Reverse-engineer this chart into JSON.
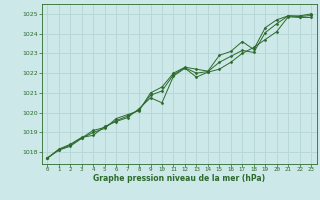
{
  "title": "Graphe pression niveau de la mer (hPa)",
  "bg_color": "#cce8e8",
  "line_color": "#2d6a2d",
  "grid_color": "#b8d8d8",
  "text_color": "#2d6a2d",
  "xlim": [
    -0.5,
    23.5
  ],
  "ylim": [
    1017.4,
    1025.5
  ],
  "yticks": [
    1018,
    1019,
    1020,
    1021,
    1022,
    1023,
    1024,
    1025
  ],
  "xticks": [
    0,
    1,
    2,
    3,
    4,
    5,
    6,
    7,
    8,
    9,
    10,
    11,
    12,
    13,
    14,
    15,
    16,
    17,
    18,
    19,
    20,
    21,
    22,
    23
  ],
  "series1_x": [
    0,
    1,
    2,
    3,
    4,
    5,
    6,
    7,
    8,
    9,
    10,
    11,
    12,
    13,
    14,
    15,
    16,
    17,
    18,
    19,
    20,
    21,
    22,
    23
  ],
  "series1_y": [
    1017.7,
    1018.1,
    1018.3,
    1018.7,
    1019.0,
    1019.2,
    1019.7,
    1019.9,
    1020.1,
    1021.0,
    1021.3,
    1022.0,
    1022.3,
    1022.2,
    1022.1,
    1022.9,
    1023.1,
    1023.6,
    1023.2,
    1024.3,
    1024.7,
    1024.9,
    1024.9,
    1025.0
  ],
  "series2_x": [
    0,
    1,
    2,
    3,
    4,
    5,
    6,
    7,
    8,
    9,
    10,
    11,
    12,
    13,
    14,
    15,
    16,
    17,
    18,
    19,
    20,
    21,
    22,
    23
  ],
  "series2_y": [
    1017.7,
    1018.15,
    1018.4,
    1018.75,
    1018.85,
    1019.3,
    1019.55,
    1019.75,
    1020.2,
    1020.75,
    1020.5,
    1021.85,
    1022.25,
    1021.8,
    1022.05,
    1022.2,
    1022.55,
    1023.0,
    1023.3,
    1023.7,
    1024.1,
    1024.85,
    1024.82,
    1024.82
  ],
  "series3_x": [
    0,
    1,
    2,
    3,
    4,
    5,
    6,
    7,
    8,
    9,
    10,
    11,
    12,
    13,
    14,
    15,
    16,
    17,
    18,
    19,
    20,
    21,
    22,
    23
  ],
  "series3_y": [
    1017.7,
    1018.12,
    1018.35,
    1018.72,
    1019.1,
    1019.25,
    1019.6,
    1019.82,
    1020.15,
    1020.88,
    1021.1,
    1021.92,
    1022.27,
    1022.0,
    1022.08,
    1022.55,
    1022.85,
    1023.15,
    1023.05,
    1024.05,
    1024.5,
    1024.9,
    1024.86,
    1024.92
  ]
}
